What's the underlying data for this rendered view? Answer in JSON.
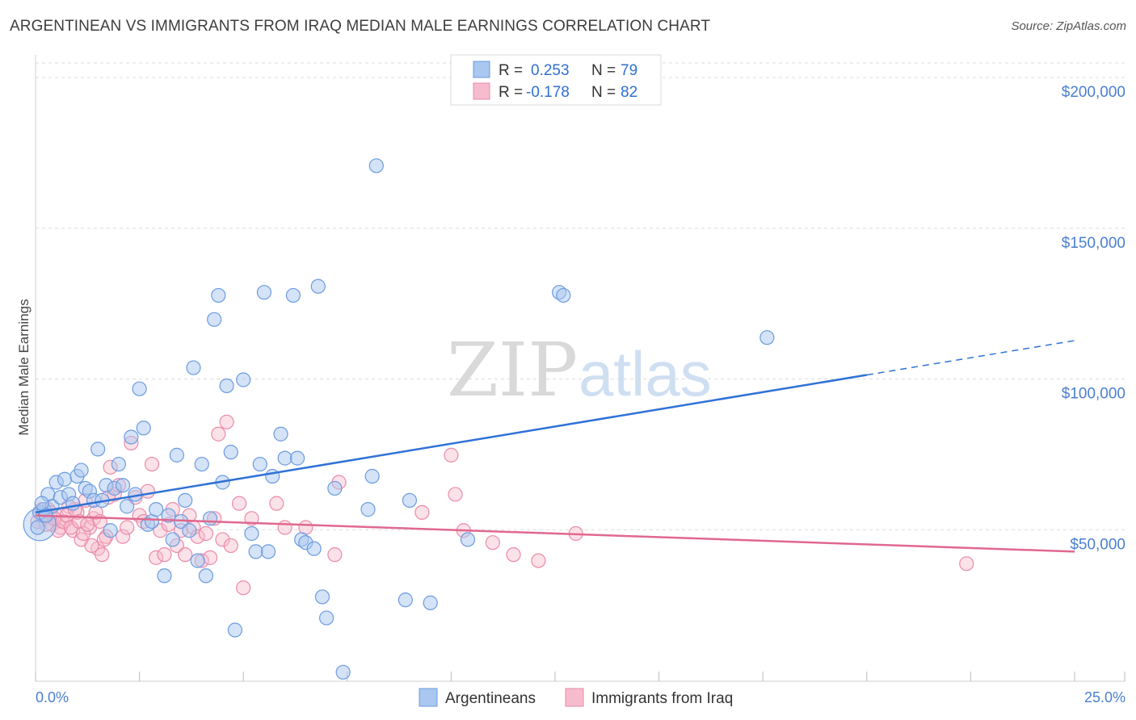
{
  "header": {
    "title": "ARGENTINEAN VS IMMIGRANTS FROM IRAQ MEDIAN MALE EARNINGS CORRELATION CHART",
    "source": "Source: ZipAtlas.com"
  },
  "watermark": {
    "zip": "ZIP",
    "atlas": "atlas"
  },
  "legend": {
    "rows": [
      {
        "r_label": "R =",
        "r_value": "0.253",
        "n_label": "N =",
        "n_value": "79"
      },
      {
        "r_label": "R =",
        "r_value": "-0.178",
        "n_label": "N =",
        "n_value": "82"
      }
    ]
  },
  "bottom_legend": {
    "items": [
      "Argentineans",
      "Immigrants from Iraq"
    ]
  },
  "colors": {
    "blue_fill": "#a9c7ef",
    "blue_stroke": "#6b9be0",
    "blue_line": "#2f72d6",
    "pink_fill": "#f6bccd",
    "pink_stroke": "#ea8aa9",
    "pink_line": "#e0688f",
    "grid": "#dcdcdc",
    "axis_text": "#4a7fd0"
  },
  "chart_data": {
    "type": "scatter",
    "title": "ARGENTINEAN VS IMMIGRANTS FROM IRAQ MEDIAN MALE EARNINGS CORRELATION CHART",
    "xlabel": "",
    "ylabel": "Median Male Earnings",
    "xlim": [
      0,
      25
    ],
    "ylim": [
      0,
      200000
    ],
    "x_tick_labels": [
      "0.0%",
      "25.0%"
    ],
    "y_tick_values": [
      50000,
      100000,
      150000,
      200000
    ],
    "y_tick_labels": [
      "$50,000",
      "$100,000",
      "$150,000",
      "$200,000"
    ],
    "grid": true,
    "series": [
      {
        "name": "Argentineans",
        "color": "#6b9be0",
        "trend": {
          "x0": 0,
          "y0": 56000,
          "x1": 25,
          "y1": 113000,
          "solid_until_x": 20
        },
        "points": [
          [
            0.1,
            56000
          ],
          [
            0.2,
            57000
          ],
          [
            0.3,
            62000
          ],
          [
            0.4,
            58000
          ],
          [
            0.5,
            66000
          ],
          [
            0.6,
            61000
          ],
          [
            0.7,
            67000
          ],
          [
            0.8,
            62000
          ],
          [
            0.9,
            59000
          ],
          [
            1.0,
            68000
          ],
          [
            1.1,
            70000
          ],
          [
            1.2,
            64000
          ],
          [
            1.3,
            63000
          ],
          [
            1.4,
            60000
          ],
          [
            1.5,
            77000
          ],
          [
            1.6,
            60000
          ],
          [
            1.7,
            65000
          ],
          [
            1.8,
            50000
          ],
          [
            1.9,
            64000
          ],
          [
            2.0,
            72000
          ],
          [
            2.1,
            65000
          ],
          [
            2.2,
            58000
          ],
          [
            2.3,
            81000
          ],
          [
            2.4,
            62000
          ],
          [
            2.5,
            97000
          ],
          [
            2.6,
            84000
          ],
          [
            2.7,
            52000
          ],
          [
            2.8,
            53000
          ],
          [
            2.9,
            57000
          ],
          [
            3.1,
            35000
          ],
          [
            3.2,
            55000
          ],
          [
            3.3,
            47000
          ],
          [
            3.4,
            75000
          ],
          [
            3.5,
            53000
          ],
          [
            3.6,
            60000
          ],
          [
            3.7,
            50000
          ],
          [
            3.8,
            104000
          ],
          [
            3.9,
            40000
          ],
          [
            4.0,
            72000
          ],
          [
            4.1,
            35000
          ],
          [
            4.2,
            54000
          ],
          [
            4.3,
            120000
          ],
          [
            4.4,
            128000
          ],
          [
            4.5,
            66000
          ],
          [
            4.6,
            98000
          ],
          [
            4.7,
            76000
          ],
          [
            4.8,
            17000
          ],
          [
            5.0,
            100000
          ],
          [
            5.2,
            49000
          ],
          [
            5.3,
            43000
          ],
          [
            5.4,
            72000
          ],
          [
            5.5,
            129000
          ],
          [
            5.6,
            43000
          ],
          [
            5.7,
            68000
          ],
          [
            5.9,
            82000
          ],
          [
            6.0,
            74000
          ],
          [
            6.2,
            128000
          ],
          [
            6.3,
            74000
          ],
          [
            6.4,
            47000
          ],
          [
            6.5,
            46000
          ],
          [
            6.7,
            44000
          ],
          [
            6.8,
            131000
          ],
          [
            6.9,
            28000
          ],
          [
            7.0,
            21000
          ],
          [
            7.2,
            64000
          ],
          [
            7.4,
            3000
          ],
          [
            8.0,
            57000
          ],
          [
            8.1,
            68000
          ],
          [
            8.2,
            171000
          ],
          [
            8.9,
            27000
          ],
          [
            9.0,
            60000
          ],
          [
            9.5,
            26000
          ],
          [
            10.4,
            47000
          ],
          [
            12.6,
            129000
          ],
          [
            12.7,
            128000
          ],
          [
            17.6,
            114000
          ],
          [
            0.05,
            51000
          ],
          [
            0.15,
            59000
          ],
          [
            0.25,
            55000
          ]
        ]
      },
      {
        "name": "Immigrants from Iraq",
        "color": "#ea8aa9",
        "trend": {
          "x0": 0,
          "y0": 55000,
          "x1": 25,
          "y1": 43000,
          "solid_until_x": 25
        },
        "points": [
          [
            0.1,
            56000
          ],
          [
            0.2,
            54000
          ],
          [
            0.3,
            57000
          ],
          [
            0.4,
            52000
          ],
          [
            0.5,
            55000
          ],
          [
            0.6,
            51000
          ],
          [
            0.7,
            53000
          ],
          [
            0.8,
            58000
          ],
          [
            0.9,
            50000
          ],
          [
            1.0,
            56000
          ],
          [
            1.1,
            47000
          ],
          [
            1.2,
            60000
          ],
          [
            1.3,
            51000
          ],
          [
            1.4,
            54000
          ],
          [
            1.5,
            44000
          ],
          [
            1.6,
            42000
          ],
          [
            1.7,
            48000
          ],
          [
            1.8,
            71000
          ],
          [
            1.9,
            62000
          ],
          [
            2.0,
            65000
          ],
          [
            2.1,
            48000
          ],
          [
            2.2,
            51000
          ],
          [
            2.3,
            79000
          ],
          [
            2.4,
            61000
          ],
          [
            2.5,
            55000
          ],
          [
            2.6,
            53000
          ],
          [
            2.7,
            63000
          ],
          [
            2.8,
            72000
          ],
          [
            2.9,
            41000
          ],
          [
            3.0,
            50000
          ],
          [
            3.1,
            42000
          ],
          [
            3.2,
            52000
          ],
          [
            3.3,
            57000
          ],
          [
            3.4,
            45000
          ],
          [
            3.5,
            50000
          ],
          [
            3.6,
            42000
          ],
          [
            3.7,
            55000
          ],
          [
            3.8,
            51000
          ],
          [
            3.9,
            48000
          ],
          [
            4.0,
            40000
          ],
          [
            4.1,
            49000
          ],
          [
            4.2,
            41000
          ],
          [
            4.3,
            54000
          ],
          [
            4.4,
            82000
          ],
          [
            4.5,
            47000
          ],
          [
            4.6,
            86000
          ],
          [
            4.7,
            45000
          ],
          [
            4.9,
            59000
          ],
          [
            5.0,
            31000
          ],
          [
            5.2,
            54000
          ],
          [
            5.8,
            59000
          ],
          [
            6.0,
            51000
          ],
          [
            6.5,
            51000
          ],
          [
            7.2,
            42000
          ],
          [
            7.3,
            66000
          ],
          [
            9.3,
            56000
          ],
          [
            10.0,
            75000
          ],
          [
            10.1,
            62000
          ],
          [
            10.3,
            50000
          ],
          [
            11.0,
            46000
          ],
          [
            11.5,
            42000
          ],
          [
            12.1,
            40000
          ],
          [
            13.0,
            49000
          ],
          [
            22.4,
            39000
          ],
          [
            0.05,
            53000
          ],
          [
            0.15,
            57000
          ],
          [
            0.25,
            52000
          ],
          [
            0.35,
            56000
          ],
          [
            0.45,
            54000
          ],
          [
            0.55,
            50000
          ],
          [
            0.65,
            53000
          ],
          [
            0.75,
            55000
          ],
          [
            0.85,
            51000
          ],
          [
            0.95,
            57000
          ],
          [
            1.05,
            53000
          ],
          [
            1.15,
            49000
          ],
          [
            1.25,
            52000
          ],
          [
            1.35,
            45000
          ],
          [
            1.45,
            56000
          ],
          [
            1.55,
            53000
          ],
          [
            1.65,
            47000
          ],
          [
            1.75,
            61000
          ]
        ]
      }
    ]
  }
}
